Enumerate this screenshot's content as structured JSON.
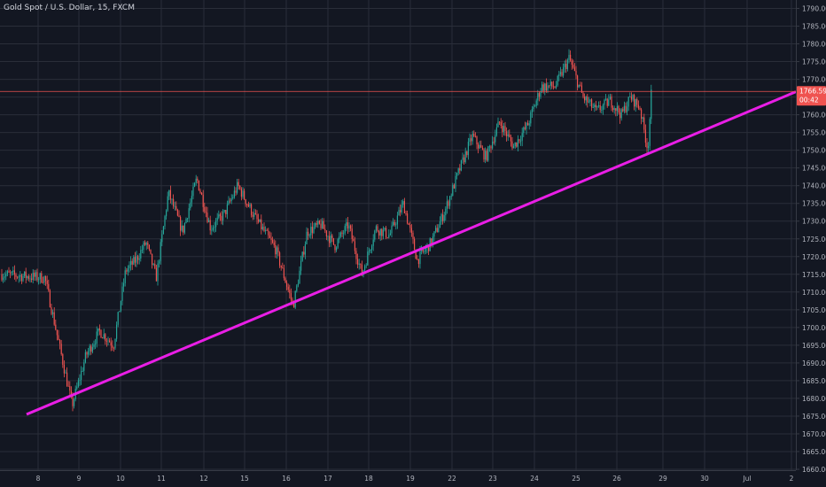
{
  "header": {
    "symbol_name": "Gold Spot / U.S. Dollar",
    "sep1": ", ",
    "interval": "15",
    "sep2": ", ",
    "exchange": "FXCM"
  },
  "colors": {
    "background": "#131722",
    "grid": "#2a2e39",
    "up_candle": "#26a69a",
    "down_candle": "#ef5350",
    "trendline": "#e91ee6",
    "price_line": "#ef5350",
    "axis_text": "#b2b5be"
  },
  "chart_data": {
    "type": "candlestick",
    "y_axis": {
      "ylim": [
        1658,
        1793
      ],
      "ticks": [
        "1790.00",
        "1785.00",
        "1780.00",
        "1775.00",
        "1770.00",
        "1765.00",
        "1760.00",
        "1755.00",
        "1750.00",
        "1745.00",
        "1740.00",
        "1735.00",
        "1730.00",
        "1725.00",
        "1720.00",
        "1715.00",
        "1710.00",
        "1705.00",
        "1700.00",
        "1695.00",
        "1690.00",
        "1685.00",
        "1680.00",
        "1675.00",
        "1670.00",
        "1665.00",
        "1660.00"
      ]
    },
    "x_axis": {
      "ticks": [
        "8",
        "9",
        "10",
        "11",
        "12",
        "15",
        "16",
        "17",
        "18",
        "19",
        "22",
        "23",
        "24",
        "25",
        "26",
        "29",
        "30",
        "Jul",
        "2"
      ]
    },
    "last_price": {
      "value": 1766.59,
      "label": "1766.59",
      "countdown": "00:42"
    },
    "trendline": {
      "start": {
        "date": "8",
        "price": 1675.5
      },
      "end": {
        "date": "2",
        "price": 1766.5
      }
    },
    "series": [
      {
        "keypoints": [
          {
            "date": "8",
            "price": 1714
          },
          {
            "date": "8",
            "price": 1696
          },
          {
            "date": "8",
            "price": 1678
          },
          {
            "date": "9",
            "price": 1692
          },
          {
            "date": "9",
            "price": 1699
          },
          {
            "date": "9",
            "price": 1695
          },
          {
            "date": "10",
            "price": 1716
          },
          {
            "date": "10",
            "price": 1719
          },
          {
            "date": "10",
            "price": 1724
          },
          {
            "date": "10",
            "price": 1714
          },
          {
            "date": "11",
            "price": 1738
          },
          {
            "date": "11",
            "price": 1727
          },
          {
            "date": "11",
            "price": 1742
          },
          {
            "date": "12",
            "price": 1728
          },
          {
            "date": "12",
            "price": 1732
          },
          {
            "date": "12",
            "price": 1740
          },
          {
            "date": "15",
            "price": 1731
          },
          {
            "date": "15",
            "price": 1722
          },
          {
            "date": "16",
            "price": 1706
          },
          {
            "date": "16",
            "price": 1727
          },
          {
            "date": "16",
            "price": 1729
          },
          {
            "date": "17",
            "price": 1723
          },
          {
            "date": "17",
            "price": 1729
          },
          {
            "date": "17",
            "price": 1715
          },
          {
            "date": "18",
            "price": 1728
          },
          {
            "date": "18",
            "price": 1726
          },
          {
            "date": "18",
            "price": 1735
          },
          {
            "date": "19",
            "price": 1719
          },
          {
            "date": "19",
            "price": 1724
          },
          {
            "date": "19",
            "price": 1733
          },
          {
            "date": "22",
            "price": 1744
          },
          {
            "date": "22",
            "price": 1754
          },
          {
            "date": "22",
            "price": 1748
          },
          {
            "date": "23",
            "price": 1758
          },
          {
            "date": "23",
            "price": 1751
          },
          {
            "date": "23",
            "price": 1757
          },
          {
            "date": "24",
            "price": 1768
          },
          {
            "date": "24",
            "price": 1768
          },
          {
            "date": "24",
            "price": 1776
          },
          {
            "date": "25",
            "price": 1765
          },
          {
            "date": "25",
            "price": 1761
          },
          {
            "date": "25",
            "price": 1764
          },
          {
            "date": "26",
            "price": 1760
          },
          {
            "date": "26",
            "price": 1765
          },
          {
            "date": "26",
            "price": 1762
          },
          {
            "date": "26",
            "price": 1750
          },
          {
            "date": "26",
            "price": 1766.5
          }
        ]
      }
    ]
  }
}
